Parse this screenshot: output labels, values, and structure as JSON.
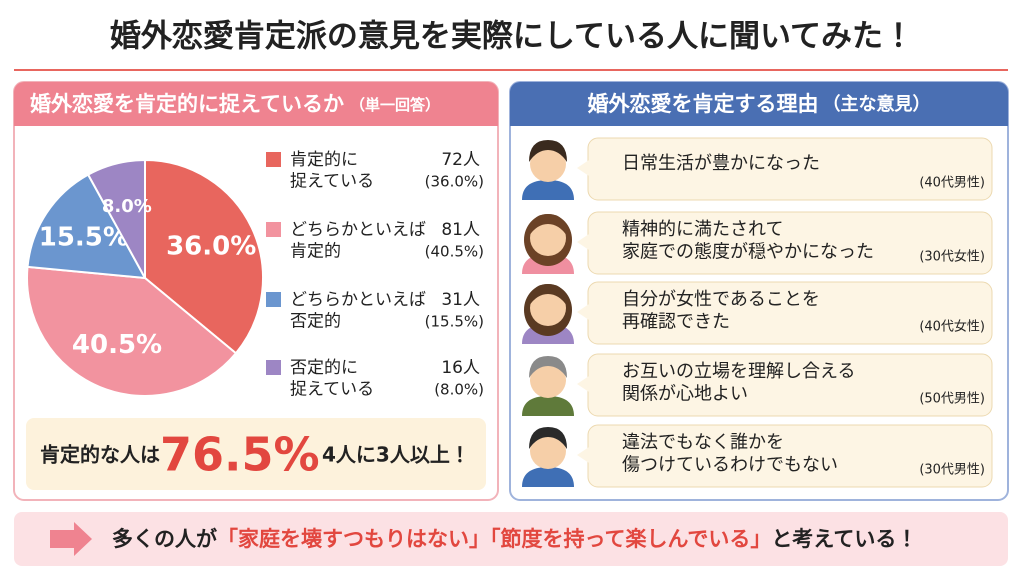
{
  "header": {
    "title": "婚外恋愛肯定派の意見を実際にしている人に聞いてみた！"
  },
  "chart_data": {
    "type": "pie",
    "title": "婚外恋愛を肯定的に捉えているか",
    "subtitle": "（単一回答）",
    "categories": [
      "肯定的に\n捉えている",
      "どちらかといえば\n肯定的",
      "どちらかといえば\n否定的",
      "否定的に\n捉えている"
    ],
    "values": [
      36.0,
      40.5,
      15.5,
      8.0
    ],
    "value_labels": [
      "36.0%",
      "40.5%",
      "15.5%",
      "8.0%"
    ],
    "count_labels": [
      "72人",
      "81人",
      "31人",
      "16人"
    ],
    "percent_labels": [
      "(36.0%)",
      "(40.5%)",
      "(15.5%)",
      "(8.0%)"
    ],
    "colors": [
      "#e8665e",
      "#f2939f",
      "#6b96cf",
      "#9d86c4"
    ]
  },
  "summary": {
    "lead": "肯定的な人は",
    "highlight": "76.5%",
    "tail": "4人に3人以上！"
  },
  "reasons": {
    "title": "婚外恋愛を肯定する理由",
    "subtitle": "（主な意見）",
    "items": [
      {
        "text": "日常生活が豊かになった",
        "who": "(40代男性)"
      },
      {
        "text": "精神的に満たされて\n家庭での態度が穏やかになった",
        "who": "(30代女性)"
      },
      {
        "text": "自分が女性であることを\n再確認できた",
        "who": "(40代女性)"
      },
      {
        "text": "お互いの立場を理解し合える\n関係が心地よい",
        "who": "(50代男性)"
      },
      {
        "text": "違法でもなく誰かを\n傷つけているわけでもない",
        "who": "(30代男性)"
      }
    ]
  },
  "footer": {
    "lead": "多くの人が",
    "quote1": "「家庭を壊すつもりはない」",
    "quote2": "「節度を持って楽しんでいる」",
    "tail": "と考えている！"
  }
}
